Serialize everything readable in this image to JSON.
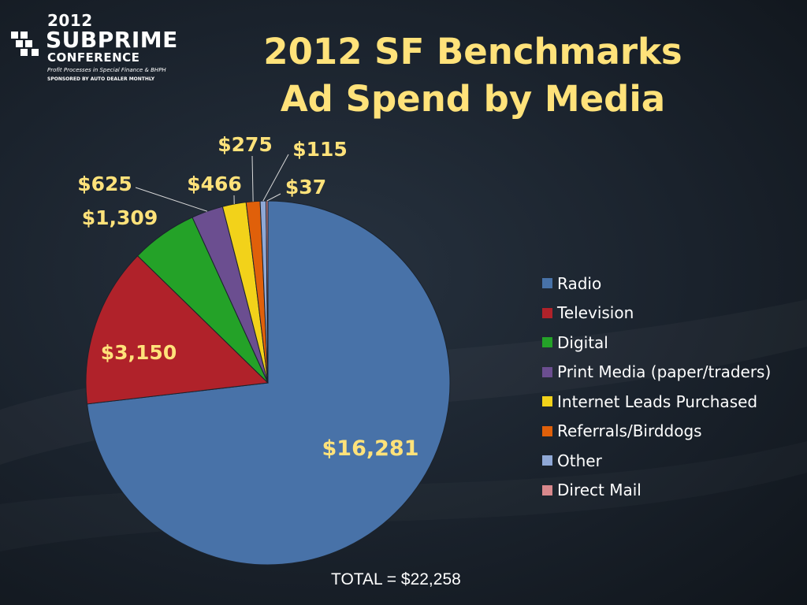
{
  "logo": {
    "year": "2012",
    "name": "SUBPRIME",
    "sub": "CONFERENCE",
    "tagline": "Profit Processes in Special Finance & BHPH",
    "sponsor": "SPONSORED BY AUTO DEALER MONTHLY"
  },
  "title": {
    "line1": "2012 SF Benchmarks",
    "line2": "Ad Spend by Media"
  },
  "total_label": "TOTAL = $22,258",
  "colors": {
    "title": "#ffe27a",
    "data_label": "#ffe27a",
    "background": "#1a222c"
  },
  "chart_data": {
    "type": "pie",
    "title": "2012 SF Benchmarks Ad Spend by Media",
    "legend_position": "right",
    "start_angle": "12 o'clock",
    "direction": "clockwise",
    "slices": [
      {
        "label": "Radio",
        "value": 16281,
        "display": "$16,281",
        "color": "#4872a8"
      },
      {
        "label": "Television",
        "value": 3150,
        "display": "$3,150",
        "color": "#b0222a"
      },
      {
        "label": "Digital",
        "value": 1309,
        "display": "$1,309",
        "color": "#24a228"
      },
      {
        "label": "Print Media (paper/traders)",
        "value": 625,
        "display": "$625",
        "color": "#6b4e90"
      },
      {
        "label": "Internet Leads Purchased",
        "value": 466,
        "display": "$466",
        "color": "#f2d21a"
      },
      {
        "label": "Referrals/Birddogs",
        "value": 275,
        "display": "$275",
        "color": "#e0600a"
      },
      {
        "label": "Other",
        "value": 115,
        "display": "$115",
        "color": "#8fa8d6"
      },
      {
        "label": "Direct Mail",
        "value": 37,
        "display": "$37",
        "color": "#d8888c"
      }
    ],
    "total": 22258
  }
}
